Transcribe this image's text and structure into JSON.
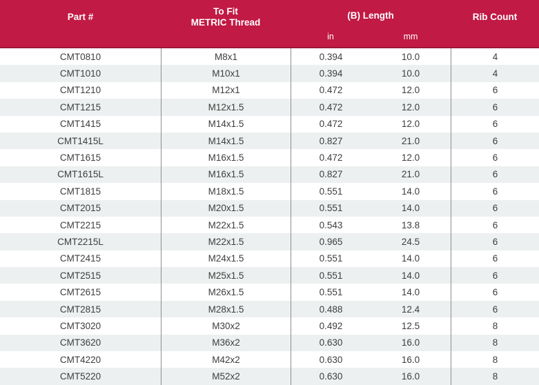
{
  "table": {
    "colors": {
      "header_bg": "#C11A44",
      "header_edge": "#9E1638",
      "header_text": "#FFFFFF",
      "row_alt_bg": "#EDF0F0",
      "divider": "#8C8C8C",
      "body_text": "#3D3D3D"
    },
    "columns": {
      "part": "Part #",
      "to_fit_line1": "To Fit",
      "to_fit_line2": "METRIC Thread",
      "length": "(B) Length",
      "unit_in": "in",
      "unit_mm": "mm",
      "rib": "Rib Count"
    },
    "rows": [
      {
        "part": "CMT0810",
        "thread": "M8x1",
        "in": "0.394",
        "mm": "10.0",
        "rib": "4"
      },
      {
        "part": "CMT1010",
        "thread": "M10x1",
        "in": "0.394",
        "mm": "10.0",
        "rib": "4"
      },
      {
        "part": "CMT1210",
        "thread": "M12x1",
        "in": "0.472",
        "mm": "12.0",
        "rib": "6"
      },
      {
        "part": "CMT1215",
        "thread": "M12x1.5",
        "in": "0.472",
        "mm": "12.0",
        "rib": "6"
      },
      {
        "part": "CMT1415",
        "thread": "M14x1.5",
        "in": "0.472",
        "mm": "12.0",
        "rib": "6"
      },
      {
        "part": "CMT1415L",
        "thread": "M14x1.5",
        "in": "0.827",
        "mm": "21.0",
        "rib": "6"
      },
      {
        "part": "CMT1615",
        "thread": "M16x1.5",
        "in": "0.472",
        "mm": "12.0",
        "rib": "6"
      },
      {
        "part": "CMT1615L",
        "thread": "M16x1.5",
        "in": "0.827",
        "mm": "21.0",
        "rib": "6"
      },
      {
        "part": "CMT1815",
        "thread": "M18x1.5",
        "in": "0.551",
        "mm": "14.0",
        "rib": "6"
      },
      {
        "part": "CMT2015",
        "thread": "M20x1.5",
        "in": "0.551",
        "mm": "14.0",
        "rib": "6"
      },
      {
        "part": "CMT2215",
        "thread": "M22x1.5",
        "in": "0.543",
        "mm": "13.8",
        "rib": "6"
      },
      {
        "part": "CMT2215L",
        "thread": "M22x1.5",
        "in": "0.965",
        "mm": "24.5",
        "rib": "6"
      },
      {
        "part": "CMT2415",
        "thread": "M24x1.5",
        "in": "0.551",
        "mm": "14.0",
        "rib": "6"
      },
      {
        "part": "CMT2515",
        "thread": "M25x1.5",
        "in": "0.551",
        "mm": "14.0",
        "rib": "6"
      },
      {
        "part": "CMT2615",
        "thread": "M26x1.5",
        "in": "0.551",
        "mm": "14.0",
        "rib": "6"
      },
      {
        "part": "CMT2815",
        "thread": "M28x1.5",
        "in": "0.488",
        "mm": "12.4",
        "rib": "6"
      },
      {
        "part": "CMT3020",
        "thread": "M30x2",
        "in": "0.492",
        "mm": "12.5",
        "rib": "8"
      },
      {
        "part": "CMT3620",
        "thread": "M36x2",
        "in": "0.630",
        "mm": "16.0",
        "rib": "8"
      },
      {
        "part": "CMT4220",
        "thread": "M42x2",
        "in": "0.630",
        "mm": "16.0",
        "rib": "8"
      },
      {
        "part": "CMT5220",
        "thread": "M52x2",
        "in": "0.630",
        "mm": "16.0",
        "rib": "8"
      }
    ]
  }
}
